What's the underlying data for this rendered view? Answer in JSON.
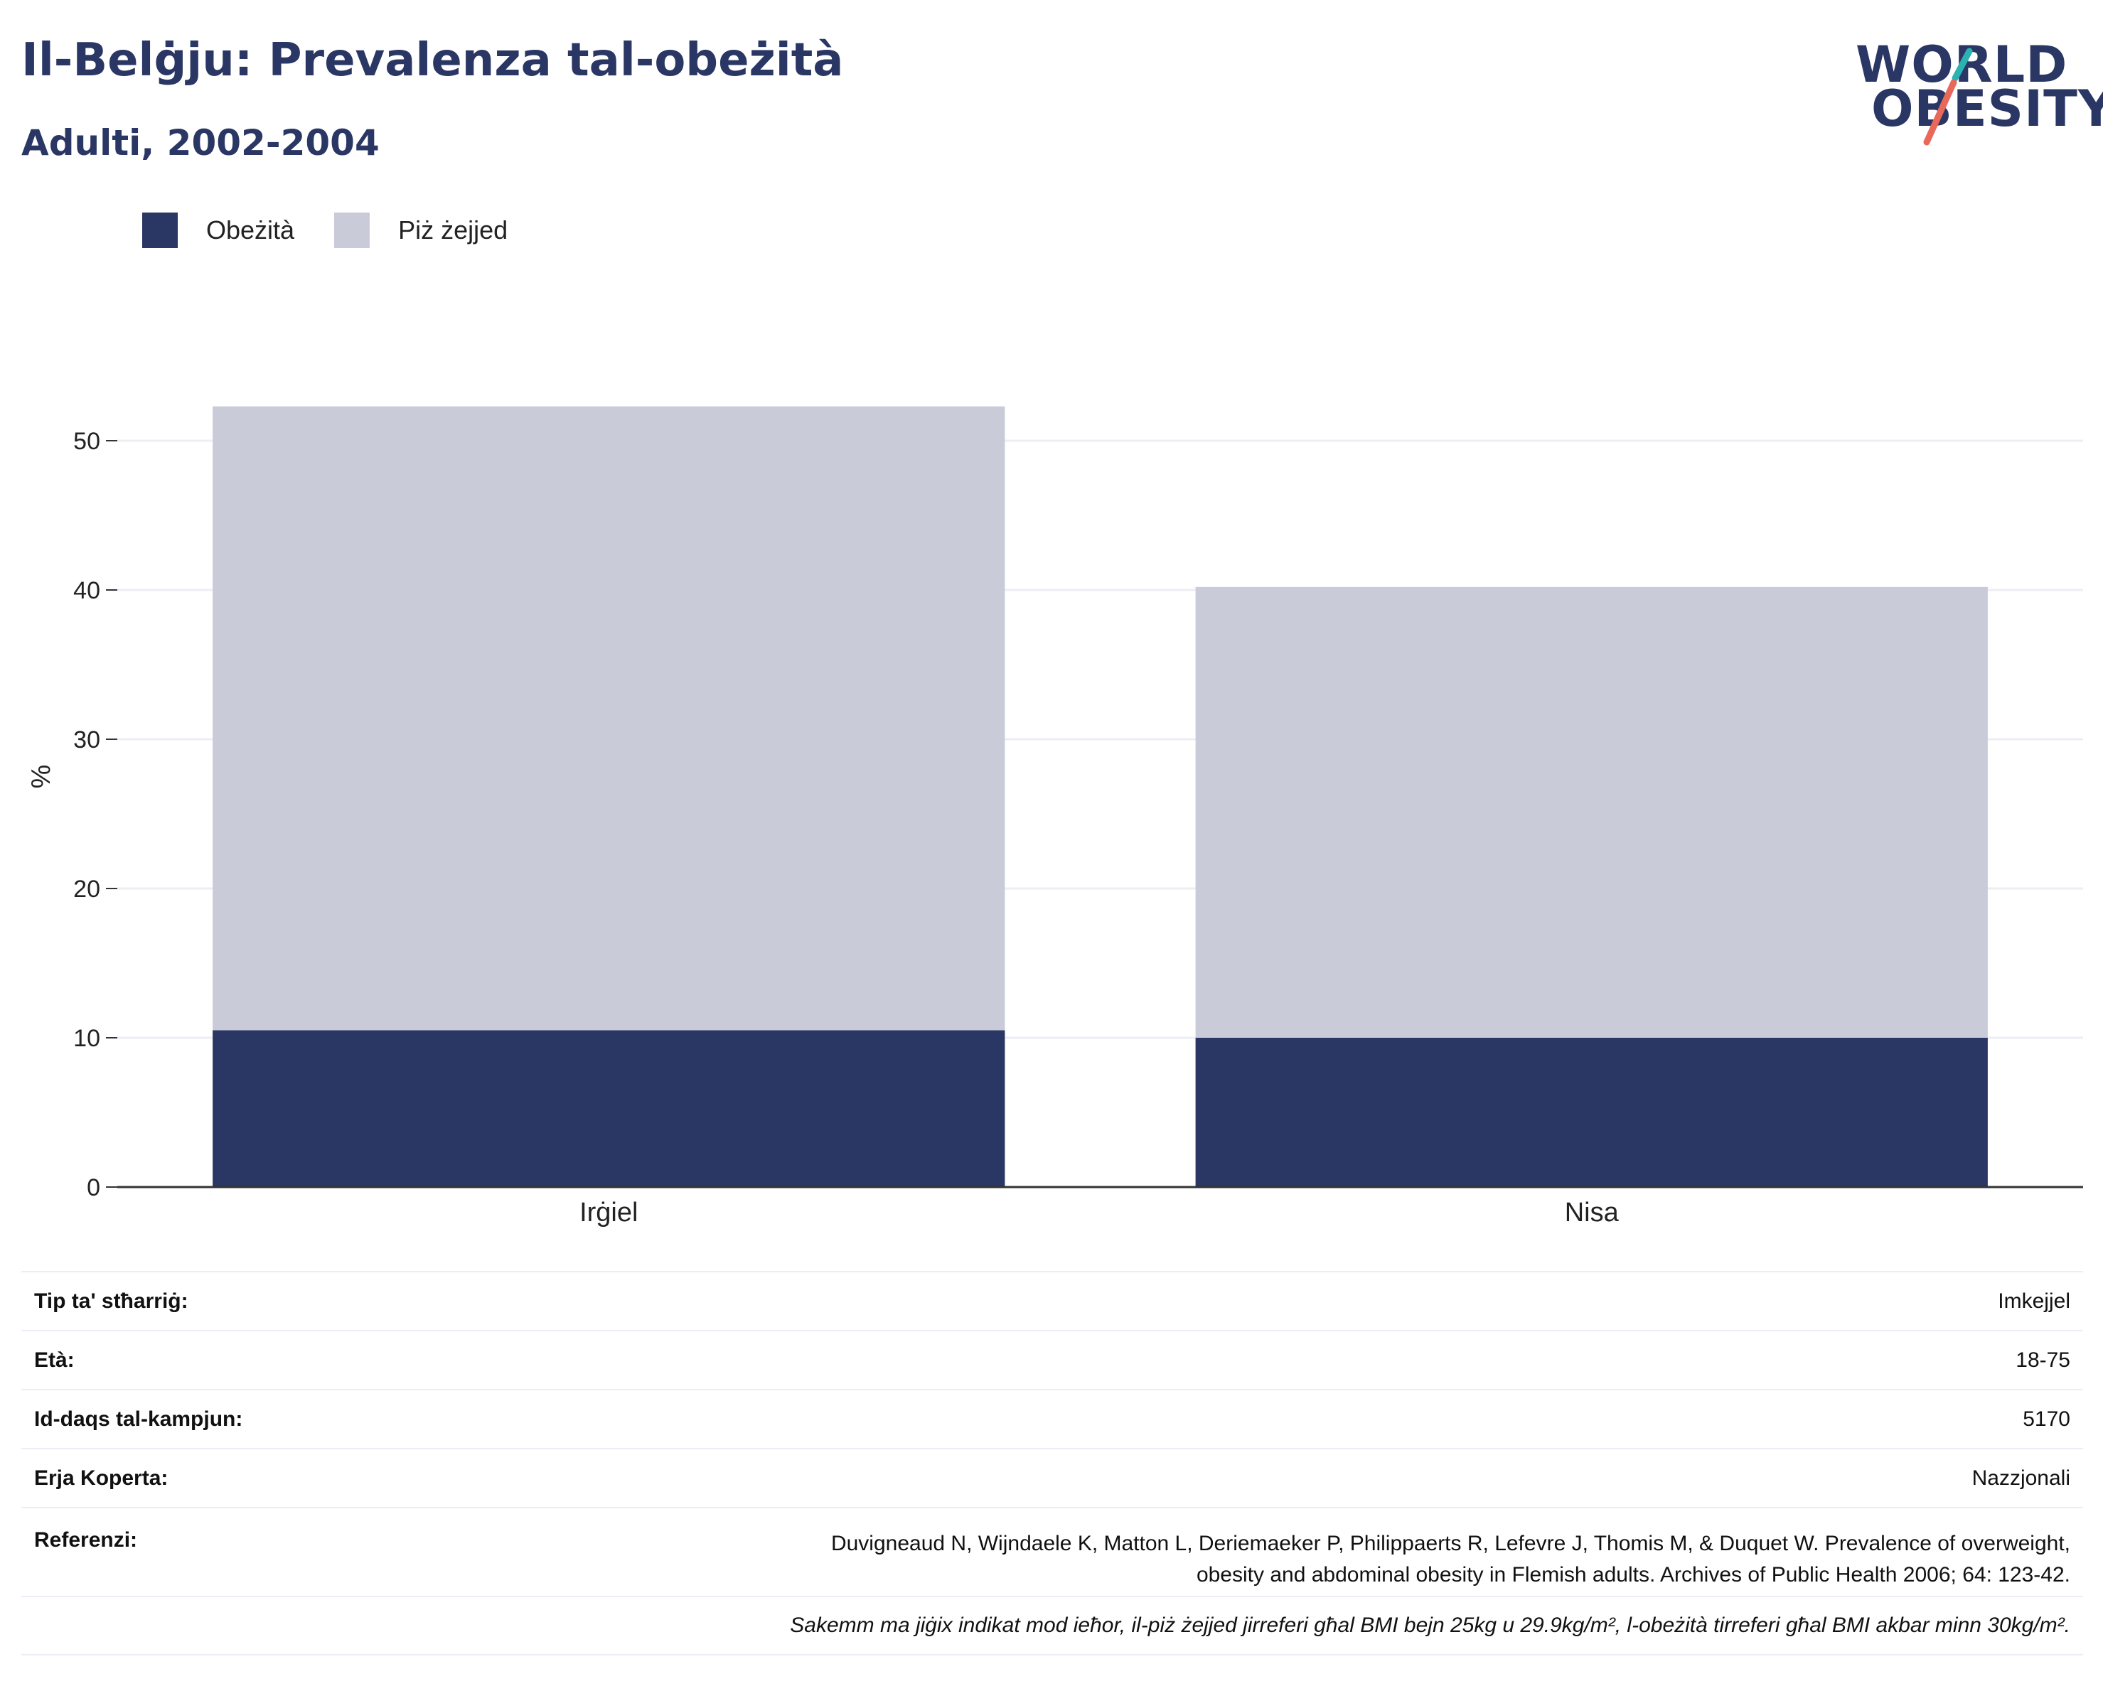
{
  "header": {
    "title": "Il-Belġju: Prevalenza tal-obeżità",
    "subtitle": "Adulti, 2002-2004"
  },
  "logo": {
    "line1": "WORLD",
    "line2": "OBESITY",
    "accent_teal": "#2bb3b1",
    "accent_coral": "#e8685a"
  },
  "legend": [
    {
      "label": "Obeżità",
      "color": "#2a3764"
    },
    {
      "label": "Piż żejjed",
      "color": "#c9ccd8"
    }
  ],
  "chart_data": {
    "type": "bar",
    "stacked": true,
    "categories": [
      "Irġiel",
      "Nisa"
    ],
    "series": [
      {
        "name": "Obeżità",
        "color": "#2a3764",
        "values": [
          10.5,
          10.0
        ]
      },
      {
        "name": "Piż żejjed",
        "color": "#c9ccd8",
        "values": [
          41.8,
          30.2
        ]
      }
    ],
    "ylabel": "%",
    "ylim": [
      0,
      55
    ],
    "yticks": [
      0,
      10,
      20,
      30,
      40,
      50
    ],
    "grid": true
  },
  "info": {
    "rows": [
      {
        "label": "Tip ta' stħarriġ:",
        "value": "Imkejjel"
      },
      {
        "label": "Età:",
        "value": "18-75"
      },
      {
        "label": "Id-daqs tal-kampjun:",
        "value": "5170"
      },
      {
        "label": "Erja Koperta:",
        "value": "Nazzjonali"
      }
    ],
    "references_label": "Referenzi:",
    "references_line1": "Duvigneaud N, Wijndaele K, Matton L, Deriemaeker P, Philippaerts R, Lefevre J, Thomis M, & Duquet W. Prevalence of overweight,",
    "references_line2": "obesity and abdominal obesity in Flemish adults. Archives of Public Health 2006; 64: 123-42.",
    "note": "Sakemm ma jiġix indikat mod ieħor, il-piż żejjed jirreferi għal BMI bejn 25kg u 29.9kg/m², l-obeżità tirreferi għal BMI akbar minn 30kg/m²."
  }
}
